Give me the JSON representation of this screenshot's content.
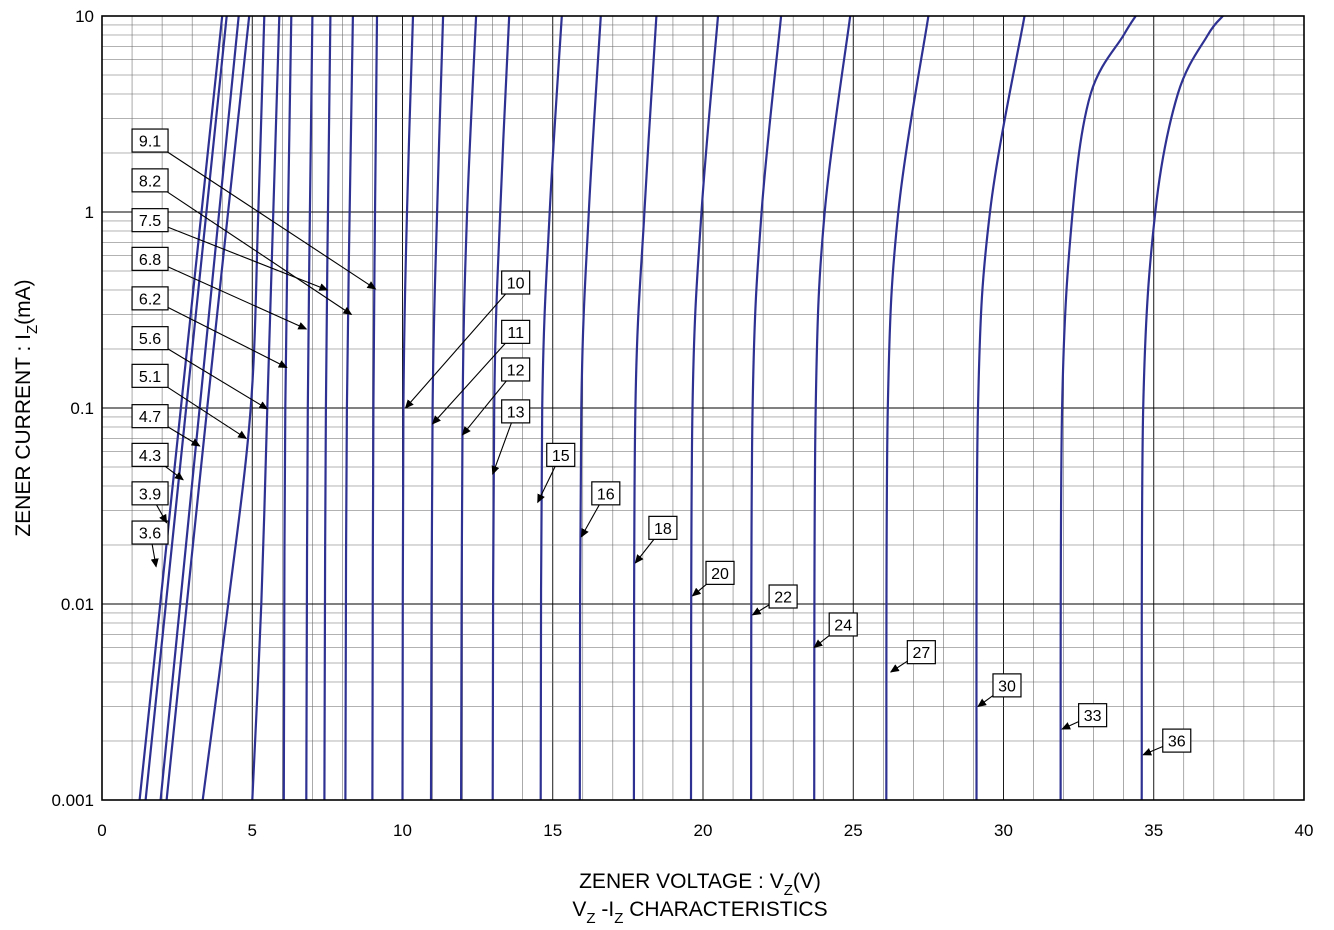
{
  "chart_data": {
    "type": "line",
    "subtitle": "VZ -IZ CHARACTERISTICS",
    "xlabel": {
      "main": "ZENER VOLTAGE : V",
      "sub": "Z",
      "tail": "(V)"
    },
    "ylabel": {
      "main": "ZENER CURRENT : I",
      "sub": "Z",
      "tail": "(mA)"
    },
    "caption": {
      "v": "V",
      "vsub": "Z",
      "mid": " -I",
      "isub": "Z",
      "tail": " CHARACTERISTICS"
    },
    "xlim": [
      0,
      40
    ],
    "ylim": [
      0.001,
      10
    ],
    "yscale": "log",
    "x_ticks": [
      "0",
      "5",
      "10",
      "15",
      "20",
      "25",
      "30",
      "35",
      "40"
    ],
    "y_ticks": [
      "0.001",
      "0.01",
      "0.1",
      "1",
      "10"
    ],
    "grid": true,
    "line_color": "#2e3192",
    "series": [
      {
        "name": "3.6",
        "points": [
          [
            1.25,
            0.001
          ],
          [
            4.0,
            10
          ]
        ]
      },
      {
        "name": "3.9",
        "points": [
          [
            1.45,
            0.001
          ],
          [
            4.15,
            10
          ]
        ]
      },
      {
        "name": "4.3",
        "points": [
          [
            1.95,
            0.001
          ],
          [
            4.55,
            10
          ]
        ]
      },
      {
        "name": "4.7",
        "points": [
          [
            2.15,
            0.001
          ],
          [
            3.5,
            0.1
          ],
          [
            4.9,
            10
          ]
        ]
      },
      {
        "name": "5.1",
        "points": [
          [
            3.35,
            0.001
          ],
          [
            4.2,
            0.01
          ],
          [
            4.95,
            0.1
          ],
          [
            5.2,
            1
          ],
          [
            5.4,
            10
          ]
        ]
      },
      {
        "name": "5.6",
        "points": [
          [
            5.0,
            0.001
          ],
          [
            5.3,
            0.01
          ],
          [
            5.5,
            0.1
          ],
          [
            5.7,
            1
          ],
          [
            5.9,
            10
          ]
        ]
      },
      {
        "name": "6.2",
        "points": [
          [
            6.05,
            0.001
          ],
          [
            6.1,
            0.1
          ],
          [
            6.3,
            10
          ]
        ]
      },
      {
        "name": "6.8",
        "points": [
          [
            6.8,
            0.001
          ],
          [
            6.85,
            0.1
          ],
          [
            7.0,
            10
          ]
        ]
      },
      {
        "name": "7.5",
        "points": [
          [
            7.4,
            0.001
          ],
          [
            7.45,
            0.1
          ],
          [
            7.6,
            10
          ]
        ]
      },
      {
        "name": "8.2",
        "points": [
          [
            8.1,
            0.001
          ],
          [
            8.15,
            0.1
          ],
          [
            8.35,
            10
          ]
        ]
      },
      {
        "name": "9.1",
        "points": [
          [
            9.0,
            0.001
          ],
          [
            9.03,
            0.1
          ],
          [
            9.15,
            10
          ]
        ]
      },
      {
        "name": "10",
        "points": [
          [
            10.0,
            0.001
          ],
          [
            10.03,
            0.1
          ],
          [
            10.15,
            1
          ],
          [
            10.35,
            10
          ]
        ]
      },
      {
        "name": "11",
        "points": [
          [
            10.95,
            0.001
          ],
          [
            11.0,
            0.1
          ],
          [
            11.15,
            1
          ],
          [
            11.35,
            10
          ]
        ]
      },
      {
        "name": "12",
        "points": [
          [
            11.95,
            0.001
          ],
          [
            12.0,
            0.1
          ],
          [
            12.15,
            1
          ],
          [
            12.45,
            10
          ]
        ]
      },
      {
        "name": "13",
        "points": [
          [
            13.0,
            0.001
          ],
          [
            13.05,
            0.1
          ],
          [
            13.25,
            1
          ],
          [
            13.55,
            10
          ]
        ]
      },
      {
        "name": "15",
        "points": [
          [
            14.6,
            0.001
          ],
          [
            14.65,
            0.1
          ],
          [
            14.9,
            1
          ],
          [
            15.3,
            10
          ]
        ]
      },
      {
        "name": "16",
        "points": [
          [
            15.9,
            0.001
          ],
          [
            15.95,
            0.1
          ],
          [
            16.2,
            1
          ],
          [
            16.6,
            10
          ]
        ]
      },
      {
        "name": "18",
        "points": [
          [
            17.7,
            0.001
          ],
          [
            17.75,
            0.1
          ],
          [
            18.05,
            1
          ],
          [
            18.45,
            10
          ]
        ]
      },
      {
        "name": "20",
        "points": [
          [
            19.6,
            0.001
          ],
          [
            19.65,
            0.1
          ],
          [
            19.95,
            1
          ],
          [
            20.5,
            10
          ]
        ]
      },
      {
        "name": "22",
        "points": [
          [
            21.6,
            0.001
          ],
          [
            21.65,
            0.1
          ],
          [
            21.95,
            1
          ],
          [
            22.6,
            10
          ]
        ]
      },
      {
        "name": "24",
        "points": [
          [
            23.7,
            0.001
          ],
          [
            23.75,
            0.1
          ],
          [
            24.05,
            1
          ],
          [
            24.9,
            10
          ]
        ]
      },
      {
        "name": "27",
        "points": [
          [
            26.1,
            0.001
          ],
          [
            26.15,
            0.1
          ],
          [
            26.5,
            1
          ],
          [
            27.5,
            10
          ]
        ]
      },
      {
        "name": "30",
        "points": [
          [
            29.1,
            0.001
          ],
          [
            29.15,
            0.1
          ],
          [
            29.55,
            1
          ],
          [
            30.7,
            10
          ]
        ]
      },
      {
        "name": "33",
        "points": [
          [
            31.9,
            0.001
          ],
          [
            31.95,
            0.1
          ],
          [
            32.3,
            1
          ],
          [
            32.9,
            4
          ],
          [
            34.0,
            8
          ],
          [
            34.4,
            10
          ]
        ]
      },
      {
        "name": "36",
        "points": [
          [
            34.6,
            0.001
          ],
          [
            34.65,
            0.1
          ],
          [
            35.05,
            1
          ],
          [
            35.8,
            4
          ],
          [
            36.8,
            8
          ],
          [
            37.3,
            10
          ]
        ]
      }
    ],
    "annotations": [
      {
        "text": "3.6",
        "box": [
          1.0,
          0.0265
        ],
        "target": [
          1.8,
          0.0155
        ]
      },
      {
        "text": "3.9",
        "box": [
          1.0,
          0.042
        ],
        "target": [
          2.15,
          0.026
        ]
      },
      {
        "text": "4.3",
        "box": [
          1.0,
          0.066
        ],
        "target": [
          2.7,
          0.043
        ]
      },
      {
        "text": "4.7",
        "box": [
          1.0,
          0.104
        ],
        "target": [
          3.25,
          0.064
        ]
      },
      {
        "text": "5.1",
        "box": [
          1.0,
          0.167
        ],
        "target": [
          4.8,
          0.07
        ]
      },
      {
        "text": "5.6",
        "box": [
          1.0,
          0.26
        ],
        "target": [
          5.5,
          0.099
        ]
      },
      {
        "text": "6.2",
        "box": [
          1.0,
          0.415
        ],
        "target": [
          6.15,
          0.161
        ]
      },
      {
        "text": "6.8",
        "box": [
          1.0,
          0.66
        ],
        "target": [
          6.8,
          0.253
        ]
      },
      {
        "text": "7.5",
        "box": [
          1.0,
          1.04
        ],
        "target": [
          7.5,
          0.4
        ]
      },
      {
        "text": "8.2",
        "box": [
          1.0,
          1.66
        ],
        "target": [
          8.3,
          0.3
        ]
      },
      {
        "text": "9.1",
        "box": [
          1.0,
          2.65
        ],
        "target": [
          9.1,
          0.405
        ]
      },
      {
        "text": "10",
        "box": [
          13.3,
          0.5
        ],
        "target": [
          10.1,
          0.1
        ]
      },
      {
        "text": "11",
        "box": [
          13.3,
          0.28
        ],
        "target": [
          11.0,
          0.083
        ]
      },
      {
        "text": "12",
        "box": [
          13.3,
          0.18
        ],
        "target": [
          12.0,
          0.073
        ]
      },
      {
        "text": "13",
        "box": [
          13.3,
          0.11
        ],
        "target": [
          13.0,
          0.046
        ]
      },
      {
        "text": "15",
        "box": [
          14.8,
          0.066
        ],
        "target": [
          14.5,
          0.033
        ]
      },
      {
        "text": "16",
        "box": [
          16.3,
          0.042
        ],
        "target": [
          15.95,
          0.022
        ]
      },
      {
        "text": "18",
        "box": [
          18.2,
          0.028
        ],
        "target": [
          17.75,
          0.0162
        ]
      },
      {
        "text": "20",
        "box": [
          20.1,
          0.0165
        ],
        "target": [
          19.65,
          0.011
        ]
      },
      {
        "text": "22",
        "box": [
          22.2,
          0.0125
        ],
        "target": [
          21.65,
          0.0088
        ]
      },
      {
        "text": "24",
        "box": [
          24.2,
          0.009
        ],
        "target": [
          23.7,
          0.006
        ]
      },
      {
        "text": "27",
        "box": [
          26.8,
          0.0065
        ],
        "target": [
          26.25,
          0.0045
        ]
      },
      {
        "text": "30",
        "box": [
          29.65,
          0.0044
        ],
        "target": [
          29.15,
          0.003
        ]
      },
      {
        "text": "33",
        "box": [
          32.5,
          0.0031
        ],
        "target": [
          31.95,
          0.0023
        ]
      },
      {
        "text": "36",
        "box": [
          35.3,
          0.0023
        ],
        "target": [
          34.65,
          0.0017
        ]
      }
    ]
  }
}
